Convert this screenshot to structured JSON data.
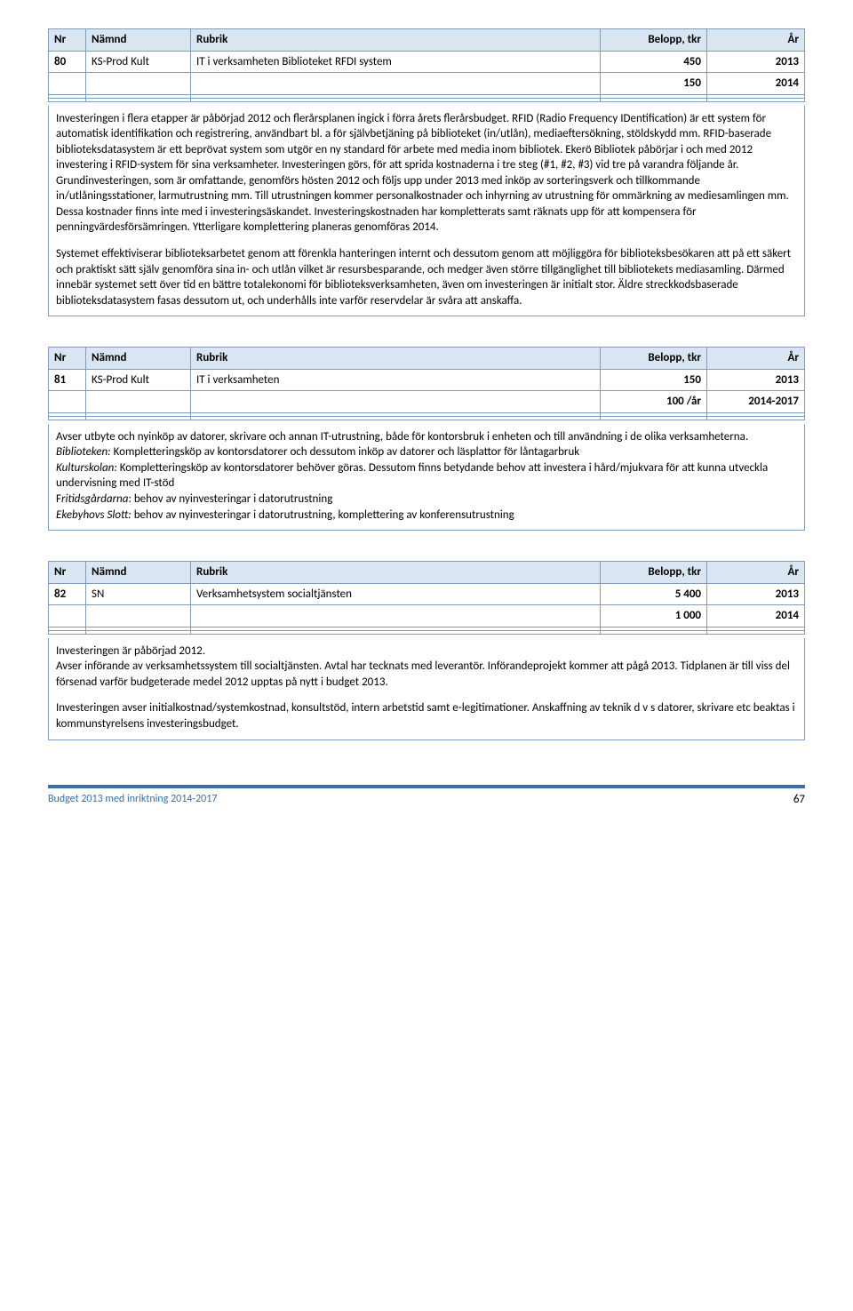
{
  "header": {
    "nr": "Nr",
    "namnd": "Nämnd",
    "rubrik": "Rubrik",
    "belopp": "Belopp, tkr",
    "ar": "År"
  },
  "blocks": [
    {
      "nr": "80",
      "namnd": "KS-Prod Kult",
      "rubrik": "IT i verksamheten Biblioteket RFDI system",
      "rows": [
        {
          "belopp": "450",
          "ar": "2013"
        },
        {
          "belopp": "150",
          "ar": "2014"
        }
      ],
      "paras": [
        "Investeringen i flera etapper är påbörjad 2012 och flerårsplanen ingick i förra årets flerårsbudget. RFID (Radio Frequency IDentification) är ett system för automatisk identifikation och registrering, användbart bl. a för självbetjäning på biblioteket (in/utlån), mediaeftersökning, stöldskydd mm. RFID-baserade biblioteksdatasystem är ett beprövat system som utgör en ny standard för arbete med media inom bibliotek. Ekerö Bibliotek påbörjar i och med 2012 investering i RFID-system för sina verksamheter. Investeringen görs, för att sprida kostnaderna i tre steg (#1, #2, #3) vid tre på varandra följande år. Grundinvesteringen, som är omfattande, genomförs hösten 2012 och följs upp under 2013 med inköp av sorteringsverk och tillkommande in/utlåningsstationer, larmutrustning mm. Till utrustningen kommer personalkostnader och inhyrning av utrustning för ommärkning av mediesamlingen mm. Dessa kostnader finns inte med i investeringsäskandet. Investeringskostnaden har kompletterats samt räknats upp för att kompensera för penningvärdesförsämringen. Ytterligare komplettering planeras genomföras 2014.",
        "Systemet effektiviserar biblioteksarbetet genom att förenkla hanteringen internt och dessutom genom att möjliggöra för biblioteksbesökaren att på ett säkert och praktiskt sätt själv genomföra sina in- och utlån vilket är resursbesparande, och medger även större tillgänglighet till bibliotekets mediasamling. Därmed innebär systemet sett över tid en bättre totalekonomi för biblioteksverksamheten, även om investeringen är initialt stor. Äldre streckkodsbaserade biblioteksdatasystem fasas dessutom ut, och underhålls inte varför reservdelar är svåra att anskaffa."
      ]
    },
    {
      "nr": "81",
      "namnd": "KS-Prod Kult",
      "rubrik": "IT i verksamheten",
      "rows": [
        {
          "belopp": "150",
          "ar": "2013"
        },
        {
          "belopp": "100 /år",
          "ar": "2014-2017"
        }
      ],
      "html_paras": [
        "Avser utbyte och nyinköp av datorer, skrivare och annan IT-utrustning, både för kontorsbruk i enheten och till användning i de olika verksamheterna.<br><em class='label'>Biblioteken:</em> Kompletteringsköp av kontorsdatorer och dessutom inköp av datorer och läsplattor för låntagarbruk<br><em class='label'>Kulturskolan:</em> Kompletteringsköp av kontorsdatorer behöver göras.  Dessutom finns betydande behov att investera i hård/mjukvara för att kunna utveckla undervisning med IT-stöd<br>F<em class='label'>ritidsgårdarna</em>: behov av nyinvesteringar i datorutrustning<br><em class='label'>Ekebyhovs Slott:</em> behov av nyinvesteringar i datorutrustning,  komplettering av konferensutrustning"
      ]
    },
    {
      "nr": "82",
      "namnd": "SN",
      "rubrik": "Verksamhetsystem socialtjänsten",
      "rows": [
        {
          "belopp": "5 400",
          "ar": "2013"
        },
        {
          "belopp": "1 000",
          "ar": "2014"
        }
      ],
      "paras": [
        "Investeringen är påbörjad 2012.\nAvser införande av verksamhetssystem till socialtjänsten. Avtal har tecknats med leverantör. Införandeprojekt kommer att pågå 2013. Tidplanen är till viss del försenad varför budgeterade medel 2012 upptas på nytt i budget 2013.",
        "Investeringen avser initialkostnad/systemkostnad, konsultstöd, intern arbetstid samt e-legitimationer. Anskaffning av teknik d v s datorer, skrivare etc beaktas i kommunstyrelsens investeringsbudget."
      ]
    }
  ],
  "footer": {
    "title": "Budget 2013 med inriktning 2014-2017",
    "page": "67"
  },
  "colors": {
    "header_bg": "#d9e6f2",
    "border": "#7f9db9",
    "footer_rule": "#3b6ea5"
  }
}
